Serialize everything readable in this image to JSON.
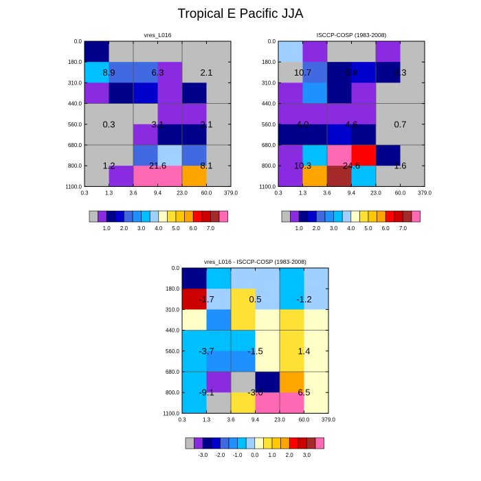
{
  "title": "Tropical E Pacific JJA",
  "colors": {
    "palette": [
      "#bebebe",
      "#8a2be2",
      "#00008b",
      "#0000cd",
      "#4169e1",
      "#1e90ff",
      "#00bfff",
      "#a0d0ff",
      "#ffffc8",
      "#ffe135",
      "#ffc800",
      "#ffa500",
      "#ff0000",
      "#cd0000",
      "#a52a2a",
      "#ff69b4"
    ],
    "grid_line": "#555555"
  },
  "chart_data": [
    {
      "type": "heatmap",
      "title": "vres_L016",
      "x_ticks": [
        "0.3",
        "1.3",
        "3.6",
        "9.4",
        "23.0",
        "60.0",
        "379.0"
      ],
      "y_ticks": [
        "0.0",
        "180.0",
        "310.0",
        "440.0",
        "560.0",
        "680.0",
        "800.0",
        "1100.0"
      ],
      "xlabel": "",
      "ylabel": "",
      "cells": [
        [
          2,
          0,
          0,
          0,
          0,
          0
        ],
        [
          6,
          4,
          4,
          1,
          0,
          0
        ],
        [
          1,
          2,
          3,
          1,
          2,
          0
        ],
        [
          0,
          0,
          0,
          1,
          1,
          0
        ],
        [
          0,
          0,
          1,
          2,
          2,
          0
        ],
        [
          0,
          0,
          4,
          7,
          4,
          0
        ],
        [
          0,
          1,
          15,
          15,
          11,
          0
        ]
      ],
      "annotations": [
        {
          "row": 1.5,
          "col": 1,
          "text": "8.9"
        },
        {
          "row": 1.5,
          "col": 3,
          "text": "6.3"
        },
        {
          "row": 1.5,
          "col": 5,
          "text": "2.1"
        },
        {
          "row": 4,
          "col": 1,
          "text": "0.3"
        },
        {
          "row": 4,
          "col": 3,
          "text": "3.1"
        },
        {
          "row": 4,
          "col": 5,
          "text": "2.1"
        },
        {
          "row": 6,
          "col": 1,
          "text": "1.2"
        },
        {
          "row": 6,
          "col": 3,
          "text": "21.6"
        },
        {
          "row": 6,
          "col": 5,
          "text": "8.1"
        }
      ],
      "colorbar_labels": [
        "1.0",
        "2.0",
        "3.0",
        "4.0",
        "5.0",
        "6.0",
        "7.0"
      ]
    },
    {
      "type": "heatmap",
      "title": "ISCCP-COSP (1983-2008)",
      "x_ticks": [
        "0.3",
        "1.3",
        "3.6",
        "9.4",
        "23.0",
        "60.0",
        "379.0"
      ],
      "y_ticks": [
        "0.0",
        "180.0",
        "310.0",
        "440.0",
        "560.0",
        "680.0",
        "800.0",
        "1100.0"
      ],
      "xlabel": "",
      "ylabel": "",
      "cells": [
        [
          7,
          1,
          0,
          0,
          1,
          0
        ],
        [
          0,
          4,
          2,
          3,
          2,
          0
        ],
        [
          1,
          5,
          2,
          1,
          0,
          0
        ],
        [
          1,
          1,
          1,
          1,
          0,
          0
        ],
        [
          2,
          2,
          3,
          2,
          0,
          0
        ],
        [
          1,
          6,
          15,
          12,
          2,
          0
        ],
        [
          1,
          11,
          14,
          6,
          0,
          0
        ]
      ],
      "annotations": [
        {
          "row": 1.5,
          "col": 1,
          "text": "10.7"
        },
        {
          "row": 1.5,
          "col": 3,
          "text": "5.8"
        },
        {
          "row": 1.5,
          "col": 5,
          "text": "3.3"
        },
        {
          "row": 4,
          "col": 1,
          "text": "4.0"
        },
        {
          "row": 4,
          "col": 3,
          "text": "4.6"
        },
        {
          "row": 4,
          "col": 5,
          "text": "0.7"
        },
        {
          "row": 6,
          "col": 1,
          "text": "10.3"
        },
        {
          "row": 6,
          "col": 3,
          "text": "24.6"
        },
        {
          "row": 6,
          "col": 5,
          "text": "1.6"
        }
      ],
      "colorbar_labels": [
        "1.0",
        "2.0",
        "3.0",
        "4.0",
        "5.0",
        "6.0",
        "7.0"
      ]
    },
    {
      "type": "heatmap",
      "title": "vres_L016 - ISCCP-COSP (1983-2008)",
      "x_ticks": [
        "0.3",
        "1.3",
        "3.6",
        "9.4",
        "23.0",
        "60.0",
        "379.0"
      ],
      "y_ticks": [
        "0.0",
        "180.0",
        "310.0",
        "440.0",
        "560.0",
        "680.0",
        "800.0",
        "1100.0"
      ],
      "xlabel": "",
      "ylabel": "",
      "cells": [
        [
          2,
          6,
          7,
          7,
          6,
          7
        ],
        [
          13,
          7,
          9,
          7,
          6,
          7
        ],
        [
          8,
          5,
          9,
          8,
          9,
          8
        ],
        [
          6,
          6,
          6,
          8,
          9,
          8
        ],
        [
          6,
          5,
          5,
          8,
          9,
          8
        ],
        [
          6,
          1,
          0,
          2,
          11,
          8
        ],
        [
          6,
          0,
          9,
          15,
          15,
          8
        ]
      ],
      "annotations": [
        {
          "row": 1.5,
          "col": 1,
          "text": "-1.7"
        },
        {
          "row": 1.5,
          "col": 3,
          "text": "0.5"
        },
        {
          "row": 1.5,
          "col": 5,
          "text": "-1.2"
        },
        {
          "row": 4,
          "col": 1,
          "text": "-3.7"
        },
        {
          "row": 4,
          "col": 3,
          "text": "-1.5"
        },
        {
          "row": 4,
          "col": 5,
          "text": "1.4"
        },
        {
          "row": 6,
          "col": 1,
          "text": "-9.1"
        },
        {
          "row": 6,
          "col": 3,
          "text": "-3.0"
        },
        {
          "row": 6,
          "col": 5,
          "text": "6.5"
        }
      ],
      "colorbar_labels": [
        "-3.0",
        "-2.0",
        "-1.0",
        "0.0",
        "1.0",
        "2.0",
        "3.0"
      ]
    }
  ]
}
